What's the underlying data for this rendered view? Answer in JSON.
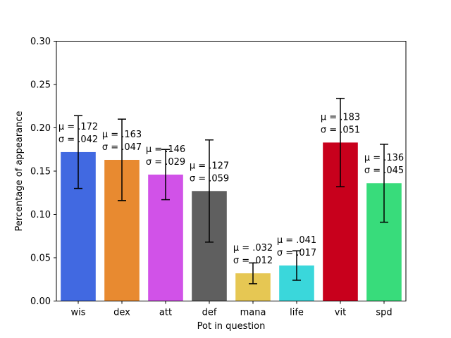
{
  "chart_data": {
    "type": "bar",
    "title": "",
    "xlabel": "Pot in question",
    "ylabel": "Percentage of appearance",
    "ylim": [
      0,
      0.3
    ],
    "yticks": [
      0.0,
      0.05,
      0.1,
      0.15,
      0.2,
      0.25,
      0.3
    ],
    "ytick_labels": [
      "0.00",
      "0.05",
      "0.10",
      "0.15",
      "0.20",
      "0.25",
      "0.30"
    ],
    "categories": [
      "wis",
      "dex",
      "att",
      "def",
      "mana",
      "life",
      "vit",
      "spd"
    ],
    "values": [
      0.172,
      0.163,
      0.146,
      0.127,
      0.032,
      0.041,
      0.183,
      0.136
    ],
    "errors": [
      0.042,
      0.047,
      0.029,
      0.059,
      0.012,
      0.017,
      0.051,
      0.045
    ],
    "colors": [
      "#4169e1",
      "#e88a30",
      "#d152e8",
      "#5f5f5f",
      "#e6c753",
      "#3ad7db",
      "#c8001c",
      "#38dc7b"
    ],
    "annotations": [
      {
        "mu": "μ = .172",
        "sigma": "σ = .042"
      },
      {
        "mu": "μ = .163",
        "sigma": "σ = .047"
      },
      {
        "mu": "μ = .146",
        "sigma": "σ = .029"
      },
      {
        "mu": "μ = .127",
        "sigma": "σ = .059"
      },
      {
        "mu": "μ = .032",
        "sigma": "σ = .012"
      },
      {
        "mu": "μ = .041",
        "sigma": "σ = .017"
      },
      {
        "mu": "μ = .183",
        "sigma": "σ = .051"
      },
      {
        "mu": "μ = .136",
        "sigma": "σ = .045"
      }
    ]
  }
}
